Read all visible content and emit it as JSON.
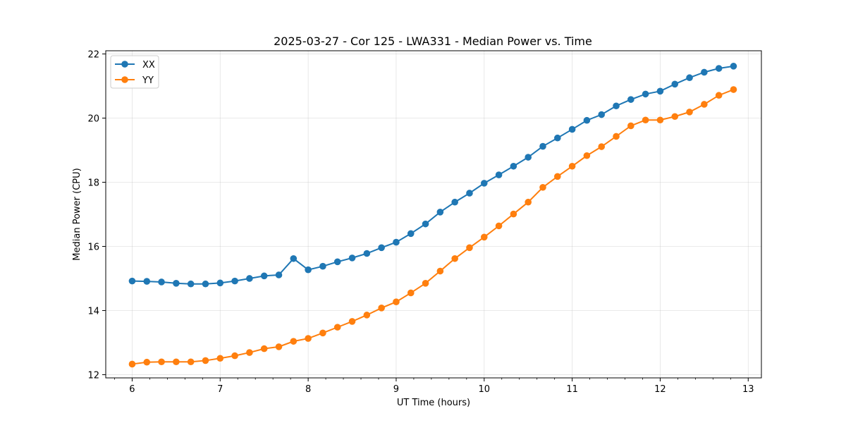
{
  "chart_data": {
    "type": "line",
    "title": "2025-03-27 - Cor 125 - LWA331 - Median Power vs. Time",
    "xlabel": "UT Time (hours)",
    "ylabel": "Median Power (CPU)",
    "xlim": [
      5.7,
      13.15
    ],
    "ylim": [
      11.9,
      22.1
    ],
    "xticks": [
      6,
      7,
      8,
      9,
      10,
      11,
      12,
      13
    ],
    "yticks": [
      12,
      14,
      16,
      18,
      20,
      22
    ],
    "grid": true,
    "legend_position": "top-left",
    "x": [
      6.0,
      6.1667,
      6.3333,
      6.5,
      6.6667,
      6.8333,
      7.0,
      7.1667,
      7.3333,
      7.5,
      7.6667,
      7.8333,
      8.0,
      8.1667,
      8.3333,
      8.5,
      8.6667,
      8.8333,
      9.0,
      9.1667,
      9.3333,
      9.5,
      9.6667,
      9.8333,
      10.0,
      10.1667,
      10.3333,
      10.5,
      10.6667,
      10.8333,
      11.0,
      11.1667,
      11.3333,
      11.5,
      11.6667,
      11.8333,
      12.0,
      12.1667,
      12.3333,
      12.5,
      12.6667,
      12.8333
    ],
    "series": [
      {
        "name": "XX",
        "color": "#1f77b4",
        "values": [
          14.92,
          14.91,
          14.89,
          14.85,
          14.83,
          14.83,
          14.86,
          14.92,
          15.0,
          15.08,
          15.11,
          15.62,
          15.27,
          15.38,
          15.52,
          15.64,
          15.78,
          15.96,
          16.13,
          16.4,
          16.7,
          17.07,
          17.38,
          17.66,
          17.97,
          18.23,
          18.5,
          18.78,
          19.12,
          19.38,
          19.65,
          19.93,
          20.11,
          20.38,
          20.58,
          20.75,
          20.84,
          21.06,
          21.26,
          21.43,
          21.55,
          21.62
        ]
      },
      {
        "name": "YY",
        "color": "#ff7f0e",
        "values": [
          12.33,
          12.39,
          12.4,
          12.4,
          12.4,
          12.44,
          12.51,
          12.59,
          12.69,
          12.81,
          12.87,
          13.04,
          13.13,
          13.3,
          13.48,
          13.66,
          13.86,
          14.08,
          14.27,
          14.55,
          14.85,
          15.23,
          15.62,
          15.96,
          16.29,
          16.64,
          17.01,
          17.38,
          17.84,
          18.18,
          18.5,
          18.83,
          19.11,
          19.43,
          19.76,
          19.94,
          19.94,
          20.05,
          20.19,
          20.43,
          20.71,
          20.89
        ]
      }
    ]
  }
}
